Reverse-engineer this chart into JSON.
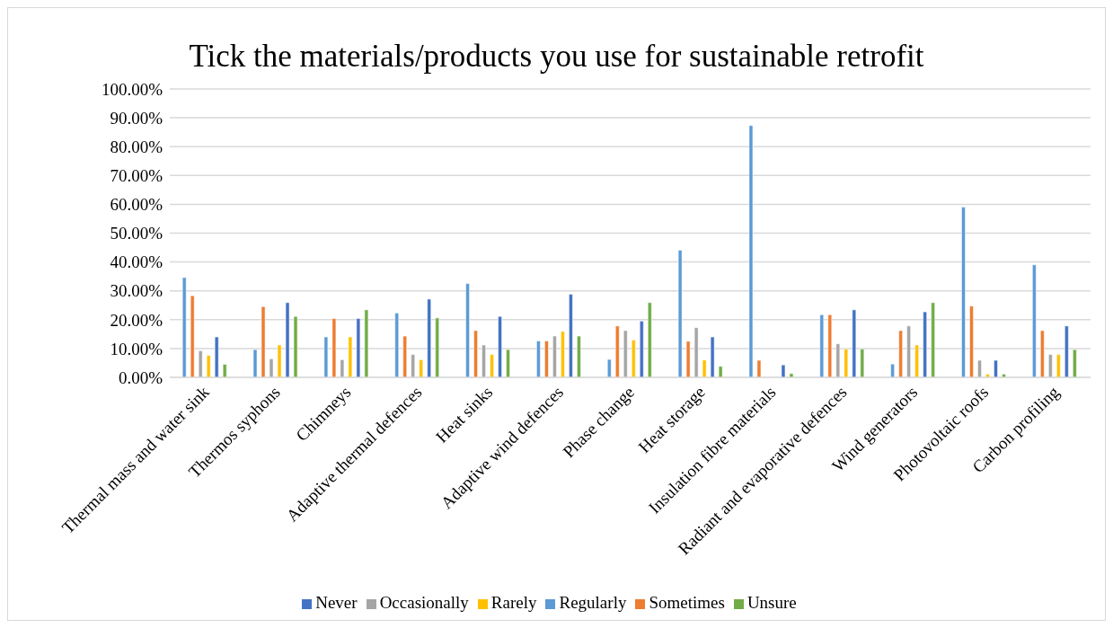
{
  "chart_data": {
    "type": "bar",
    "title": "Tick the materials/products you use for sustainable retrofit",
    "categories": [
      "Thermal mass and water sink",
      "Thermos syphons",
      "Chimneys",
      "Adaptive thermal defences",
      "Heat sinks",
      "Adaptive wind defences",
      "Phase change",
      "Heat storage",
      "Insulation fibre materials",
      "Radiant and evaporative defences",
      "Wind generators",
      "Photovoltaic roofs",
      "Carbon profiling"
    ],
    "series": [
      {
        "name": "Regularly",
        "color": "#5b9bd5",
        "values": [
          34.6,
          9.6,
          14.0,
          22.3,
          32.5,
          12.6,
          6.2,
          44.1,
          87.3,
          21.7,
          4.6,
          59.0,
          39.0
        ]
      },
      {
        "name": "Sometimes",
        "color": "#ed7d31",
        "values": [
          28.3,
          24.5,
          20.4,
          14.3,
          16.2,
          12.6,
          17.8,
          12.5,
          5.9,
          21.7,
          16.2,
          24.7,
          16.2
        ]
      },
      {
        "name": "Occasionally",
        "color": "#a5a5a5",
        "values": [
          9.2,
          6.4,
          6.1,
          7.9,
          11.2,
          14.3,
          16.2,
          17.2,
          0,
          11.6,
          17.8,
          5.9,
          7.9
        ]
      },
      {
        "name": "Rarely",
        "color": "#ffc000",
        "values": [
          7.6,
          11.2,
          14.0,
          6.1,
          7.9,
          15.9,
          12.9,
          6.0,
          0,
          9.8,
          11.2,
          1.1,
          7.9
        ]
      },
      {
        "name": "Never",
        "color": "#4472c4",
        "values": [
          14.0,
          25.9,
          20.4,
          27.1,
          21.1,
          28.8,
          19.5,
          14.0,
          4.3,
          23.4,
          22.7,
          5.9,
          17.8
        ]
      },
      {
        "name": "Unsure",
        "color": "#70ad47",
        "values": [
          4.5,
          21.1,
          23.4,
          20.6,
          9.6,
          14.3,
          25.9,
          3.8,
          1.3,
          9.8,
          25.9,
          1.1,
          9.6
        ]
      }
    ],
    "ylim": [
      0,
      100
    ],
    "yticks": [
      {
        "value": 0,
        "label": "0.00%"
      },
      {
        "value": 10,
        "label": "10.00%"
      },
      {
        "value": 20,
        "label": "20.00%"
      },
      {
        "value": 30,
        "label": "30.00%"
      },
      {
        "value": 40,
        "label": "40.00%"
      },
      {
        "value": 50,
        "label": "50.00%"
      },
      {
        "value": 60,
        "label": "60.00%"
      },
      {
        "value": 70,
        "label": "70.00%"
      },
      {
        "value": 80,
        "label": "80.00%"
      },
      {
        "value": 90,
        "label": "90.00%"
      },
      {
        "value": 100,
        "label": "100.00%"
      }
    ],
    "grid": "y",
    "legend": "bottom"
  }
}
